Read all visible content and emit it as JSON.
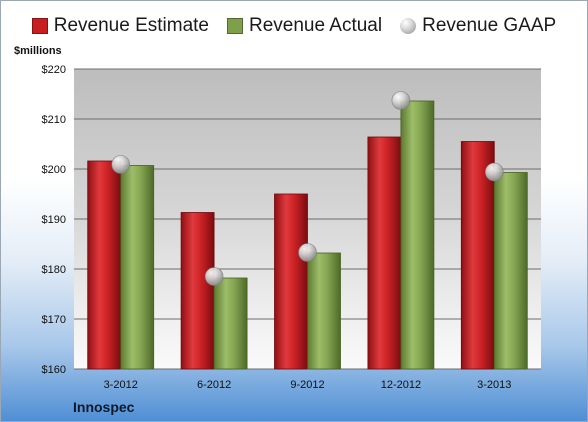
{
  "chart_data": {
    "type": "bar",
    "categories": [
      "3-2012",
      "6-2012",
      "9-2012",
      "12-2012",
      "3-2013"
    ],
    "series": [
      {
        "name": "Revenue Estimate",
        "values": [
          201.6,
          191.3,
          195.0,
          206.4,
          205.5
        ],
        "color": "#c81e22"
      },
      {
        "name": "Revenue Actual",
        "values": [
          200.7,
          178.2,
          183.2,
          213.6,
          199.3
        ],
        "color": "#7fa04b"
      }
    ],
    "markers": {
      "name": "Revenue GAAP",
      "values": [
        200.9,
        178.5,
        183.3,
        213.7,
        199.4
      ]
    },
    "ylabel": "$millions",
    "ylim": [
      160,
      220
    ],
    "yticks": [
      160,
      170,
      180,
      190,
      200,
      210,
      220
    ],
    "ytick_labels": [
      "$160",
      "$170",
      "$180",
      "$190",
      "$200",
      "$210",
      "$220"
    ],
    "grid": true,
    "legend_position": "top"
  },
  "footer": {
    "company": "Innospec"
  }
}
